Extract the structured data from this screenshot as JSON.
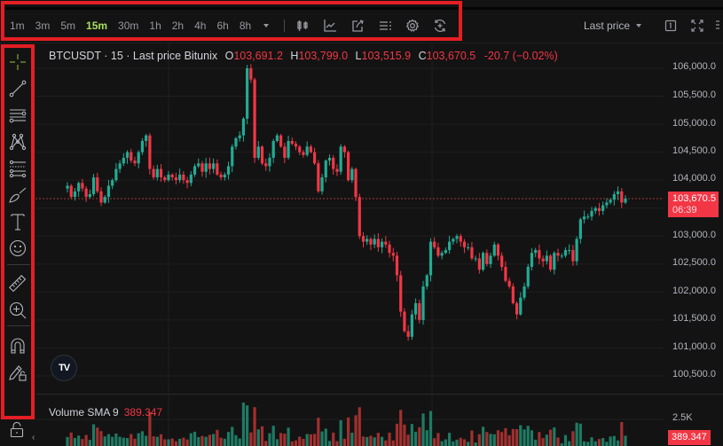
{
  "toolbar": {
    "timeframes": [
      "1m",
      "3m",
      "5m",
      "15m",
      "30m",
      "1h",
      "2h",
      "4h",
      "6h",
      "8h"
    ],
    "active_timeframe": "15m",
    "icons": [
      "candles-icon",
      "indicators-icon",
      "share-icon",
      "templates-icon",
      "settings-icon",
      "replay-icon"
    ],
    "price_type": "Last price",
    "right_icons": [
      "layout-icon",
      "fullscreen-icon",
      "more-icon"
    ]
  },
  "sidebar": {
    "tools": [
      {
        "name": "crosshair-tool",
        "icon": "crosshair-icon"
      },
      {
        "name": "trend-line-tool",
        "icon": "trend-line-icon"
      },
      {
        "name": "horizontal-lines-tool",
        "icon": "horizontal-lines-icon"
      },
      {
        "name": "pattern-tool",
        "icon": "pattern-icon"
      },
      {
        "name": "fib-tool",
        "icon": "fib-retracement-icon"
      },
      {
        "name": "brush-tool",
        "icon": "brush-icon"
      },
      {
        "name": "text-tool",
        "icon": "text-icon"
      },
      {
        "name": "emoji-tool",
        "icon": "emoji-icon"
      },
      {
        "name": "measure-tool",
        "icon": "ruler-icon"
      },
      {
        "name": "zoom-in-tool",
        "icon": "zoom-in-icon"
      },
      {
        "name": "magnet-tool",
        "icon": "magnet-icon"
      },
      {
        "name": "lock-drawings-tool",
        "icon": "pencil-lock-icon"
      }
    ]
  },
  "legend": {
    "symbol": "BTCUSDT · 15 · Last price Bitunix",
    "o_label": "O",
    "o_value": "103,691.2",
    "h_label": "H",
    "h_value": "103,799.0",
    "l_label": "L",
    "l_value": "103,515.9",
    "c_label": "C",
    "c_value": "103,670.5",
    "change": "-20.7 (−0.02%)"
  },
  "price_axis": {
    "ticks": [
      "106,000.0",
      "105,500.0",
      "105,000.0",
      "104,500.0",
      "104,000.0",
      "103,000.0",
      "102,500.0",
      "102,000.0",
      "101,500.0",
      "101,000.0",
      "100,500.0"
    ],
    "current_price": "103,670.5",
    "countdown": "06:39"
  },
  "volume": {
    "label": "Volume SMA 9",
    "value": "389.347",
    "axis_tick": "2.5K",
    "current": "389.347"
  },
  "colors": {
    "up": "#22ab94",
    "down": "#f23645",
    "accent_timeframe": "#a8e05f",
    "annotation": "#e31e24"
  },
  "chart_data": {
    "type": "candlestick",
    "title": "BTCUSDT · 15 · Last price Bitunix",
    "ylim": [
      100300,
      106300
    ],
    "current_price": 103670.5,
    "candles_close_approx": [
      103900,
      103700,
      103800,
      103950,
      103850,
      103700,
      103750,
      104050,
      103800,
      103600,
      103700,
      103900,
      104000,
      104200,
      104300,
      104400,
      104500,
      104350,
      104300,
      104500,
      104700,
      104800,
      104200,
      104050,
      104200,
      104050,
      104000,
      104100,
      104050,
      104000,
      104100,
      104000,
      103950,
      104100,
      104250,
      104300,
      104150,
      104300,
      104200,
      104300,
      104100,
      104050,
      104100,
      104250,
      104600,
      104750,
      104800,
      105100,
      106000,
      105800,
      104400,
      104600,
      104300,
      104250,
      104400,
      104700,
      104800,
      104600,
      104400,
      104700,
      104650,
      104600,
      104500,
      104450,
      104600,
      104500,
      104300,
      103800,
      104050,
      104350,
      104400,
      104200,
      104150,
      104600,
      104500,
      104000,
      104200,
      103700,
      103000,
      102900,
      102950,
      102850,
      102950,
      102800,
      102900,
      102850,
      102700,
      102650,
      102300,
      101650,
      101300,
      101200,
      101600,
      101800,
      101500,
      102100,
      102300,
      102900,
      102800,
      102650,
      102700,
      102750,
      102900,
      102950,
      103000,
      102900,
      102800,
      102800,
      102600,
      102600,
      102400,
      102700,
      102500,
      102650,
      102850,
      102650,
      102450,
      102200,
      102100,
      101800,
      101600,
      101900,
      102100,
      102450,
      102700,
      102750,
      102600,
      102550,
      102650,
      102400,
      102700,
      102650,
      102650,
      102750,
      102750,
      102550,
      102950,
      103300,
      103350,
      103350,
      103450,
      103500,
      103450,
      103550,
      103600,
      103650,
      103750,
      103800,
      103600,
      103670
    ]
  }
}
